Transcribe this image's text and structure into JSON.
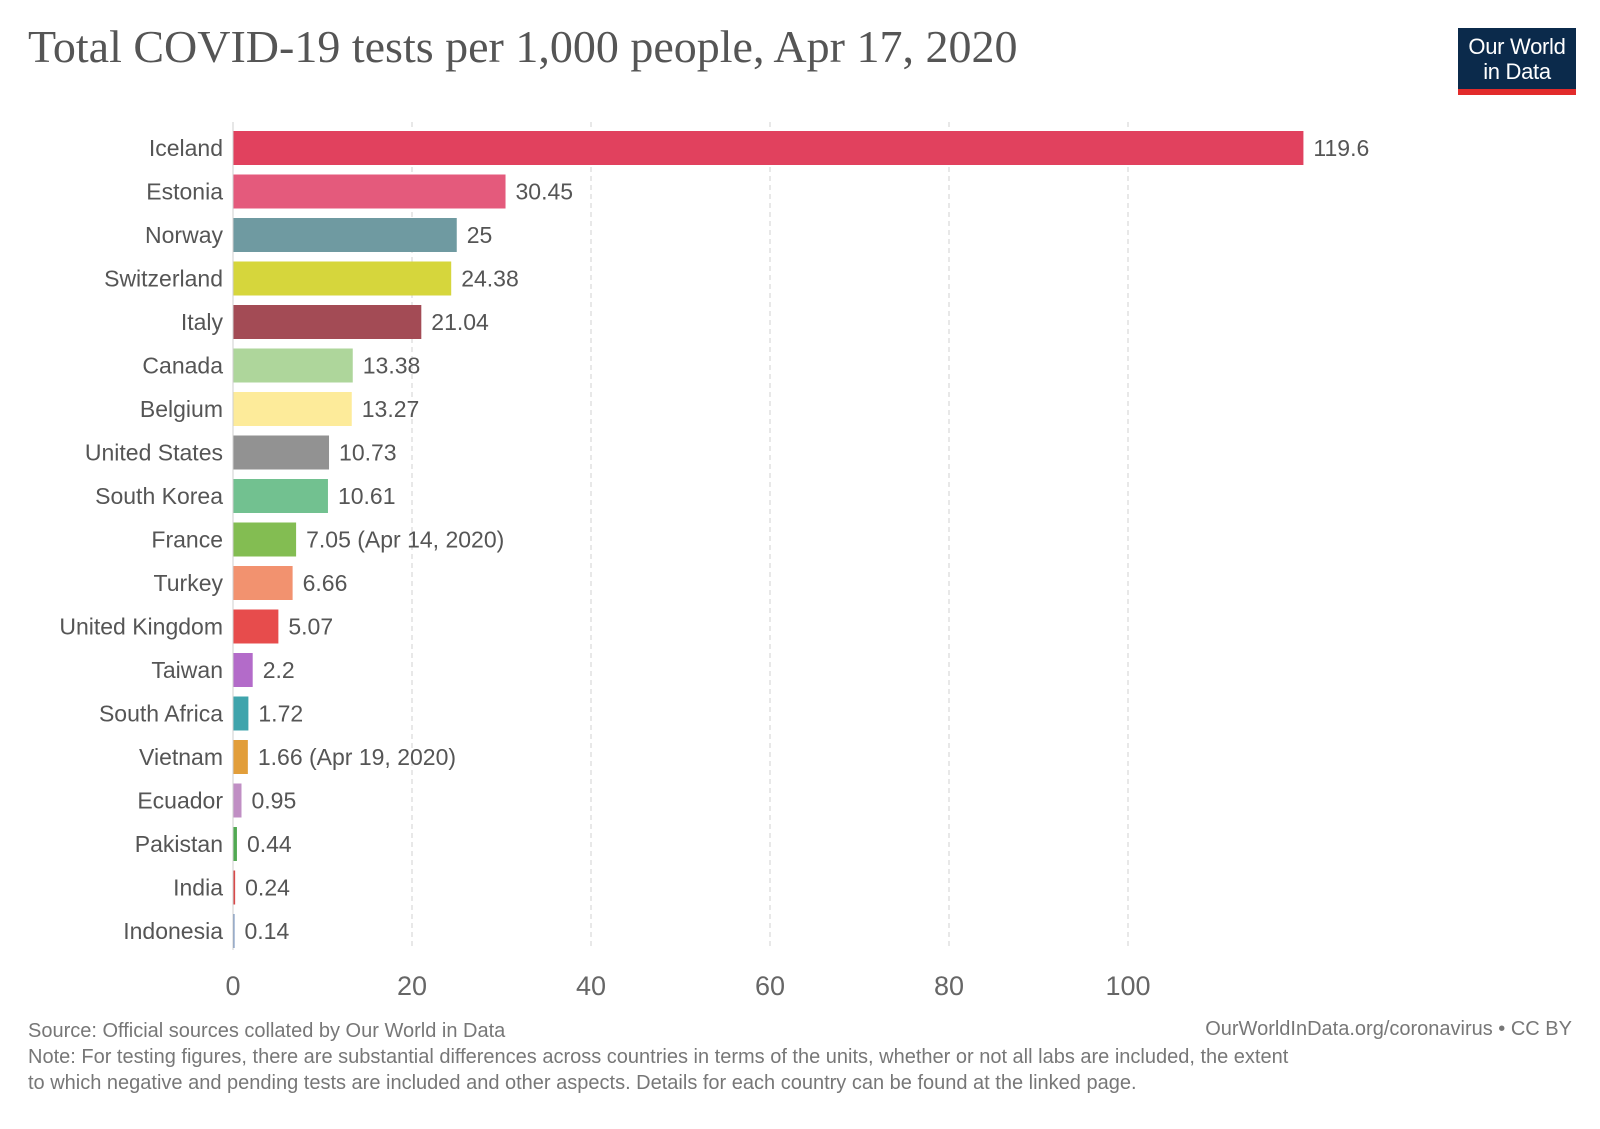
{
  "header": {
    "title": "Total COVID-19 tests per 1,000 people, Apr 17, 2020",
    "logo_line1": "Our World",
    "logo_line2": "in Data"
  },
  "footer": {
    "source": "Source: Official sources collated by Our World in Data",
    "credit": "OurWorldInData.org/coronavirus • CC BY",
    "note_line1": "Note: For testing figures, there are substantial differences across countries in terms of the units, whether or not all labs are included, the extent",
    "note_line2": "to which negative and pending tests are included and other aspects. Details for each country can be found at the linked page."
  },
  "chart_data": {
    "type": "bar",
    "orientation": "horizontal",
    "title": "Total COVID-19 tests per 1,000 people, Apr 17, 2020",
    "xlim": [
      0,
      120
    ],
    "x_ticks": [
      0,
      20,
      40,
      60,
      80,
      100
    ],
    "grid": "vertical-dashed",
    "categories": [
      "Iceland",
      "Estonia",
      "Norway",
      "Switzerland",
      "Italy",
      "Canada",
      "Belgium",
      "United States",
      "South Korea",
      "France",
      "Turkey",
      "United Kingdom",
      "Taiwan",
      "South Africa",
      "Vietnam",
      "Ecuador",
      "Pakistan",
      "India",
      "Indonesia"
    ],
    "values": [
      119.6,
      30.45,
      25,
      24.38,
      21.04,
      13.38,
      13.27,
      10.73,
      10.61,
      7.05,
      6.66,
      5.07,
      2.2,
      1.72,
      1.66,
      0.95,
      0.44,
      0.24,
      0.14
    ],
    "value_labels": [
      "119.6",
      "30.45",
      "25",
      "24.38",
      "21.04",
      "13.38",
      "13.27",
      "10.73",
      "10.61",
      "7.05 (Apr 14, 2020)",
      "6.66",
      "5.07",
      "2.2",
      "1.72",
      "1.66 (Apr 19, 2020)",
      "0.95",
      "0.44",
      "0.24",
      "0.14"
    ],
    "colors": [
      "#e1415e",
      "#e45a7c",
      "#6f9aa1",
      "#d6d63c",
      "#a34b55",
      "#aed69b",
      "#fdeb9a",
      "#929292",
      "#72c190",
      "#83bd52",
      "#f2926f",
      "#e74c4c",
      "#b36bc9",
      "#3fa4ac",
      "#e29e3a",
      "#c08fc4",
      "#51a952",
      "#d84a4a",
      "#6a8ab8"
    ]
  }
}
